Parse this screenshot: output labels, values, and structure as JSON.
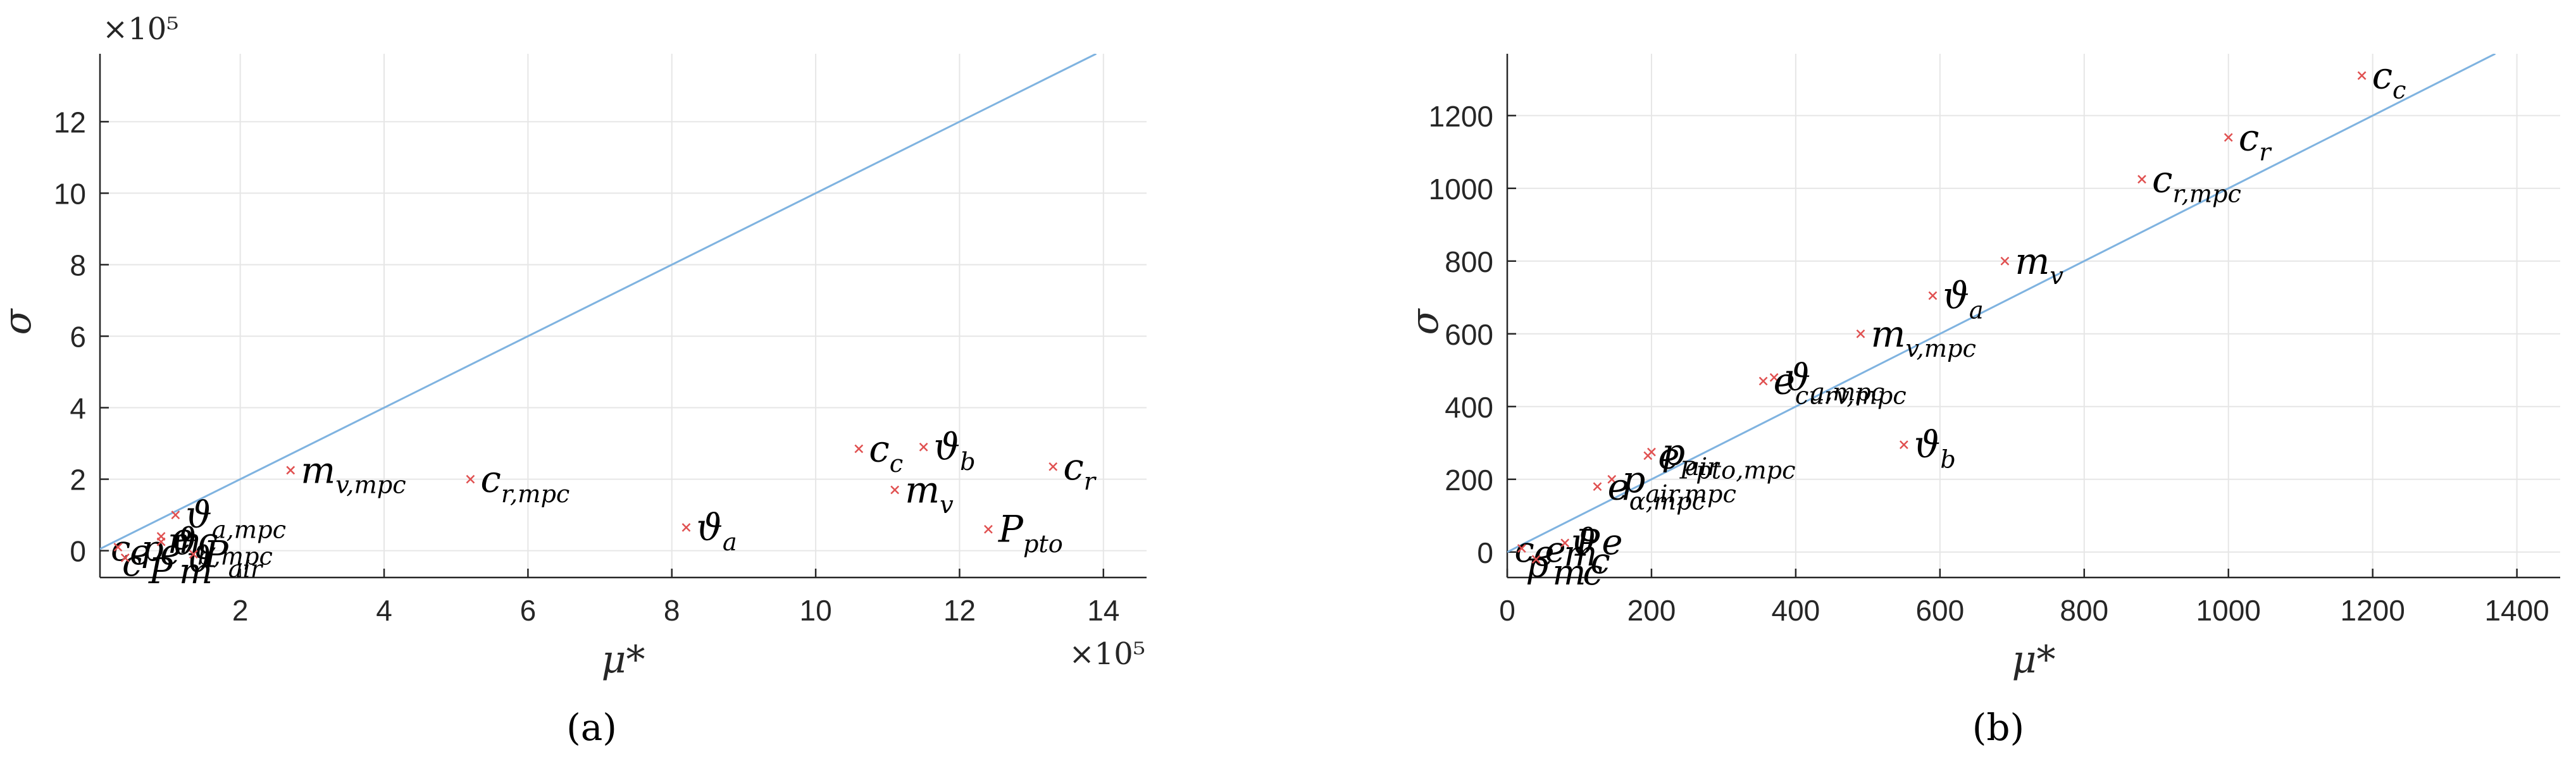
{
  "chart_data": [
    {
      "type": "scatter",
      "panel": "a",
      "caption": "(a)",
      "xlabel": "μ*",
      "ylabel": "σ",
      "xlim": [
        0.05,
        14.6
      ],
      "ylim": [
        -0.75,
        13.9
      ],
      "x_ticks": [
        2,
        4,
        6,
        8,
        10,
        12,
        14
      ],
      "y_ticks": [
        0,
        2,
        4,
        6,
        8,
        10,
        12
      ],
      "x_exponent": "×10⁵",
      "y_exponent": "×10⁵",
      "grid": true,
      "reference_line": {
        "from": [
          0,
          0
        ],
        "to": [
          13.9,
          13.9
        ],
        "color": "#7fb3e0"
      },
      "marker_color": "#e05050",
      "points": [
        {
          "label": "c_c",
          "x": 10.6,
          "y": 2.85
        },
        {
          "label": "ϑ_b",
          "x": 11.5,
          "y": 2.9
        },
        {
          "label": "m_v",
          "x": 11.1,
          "y": 1.7
        },
        {
          "label": "c_r",
          "x": 13.3,
          "y": 2.35
        },
        {
          "label": "P_pto",
          "x": 12.4,
          "y": 0.6
        },
        {
          "label": "ϑ_a",
          "x": 8.2,
          "y": 0.65
        },
        {
          "label": "c_r,mpc",
          "x": 5.2,
          "y": 2.0
        },
        {
          "label": "m_v,mpc",
          "x": 2.7,
          "y": 2.25
        },
        {
          "label": "ϑ_a,mpc",
          "x": 1.1,
          "y": 1.0
        },
        {
          "label": "e",
          "x": 0.9,
          "y": 0.4
        },
        {
          "label": "ϑ_b,mpc",
          "x": 0.9,
          "y": 0.25
        },
        {
          "label": "P_air",
          "x": 1.35,
          "y": -0.1
        },
        {
          "label": "",
          "x": 0.3,
          "y": 0.1
        },
        {
          "label": "",
          "x": 0.4,
          "y": -0.2
        }
      ],
      "cluster_labels": [
        "c",
        "e",
        "P",
        "m",
        "ϑ",
        "c",
        "p",
        "e",
        "m",
        "c"
      ]
    },
    {
      "type": "scatter",
      "panel": "b",
      "caption": "(b)",
      "xlabel": "μ*",
      "ylabel": "σ",
      "xlim": [
        0,
        1460
      ],
      "ylim": [
        -70,
        1370
      ],
      "x_ticks": [
        0,
        200,
        400,
        600,
        800,
        1000,
        1200,
        1400
      ],
      "y_ticks": [
        0,
        200,
        400,
        600,
        800,
        1000,
        1200
      ],
      "grid": true,
      "reference_line": {
        "from": [
          0,
          0
        ],
        "to": [
          1370,
          1370
        ],
        "color": "#7fb3e0"
      },
      "marker_color": "#e05050",
      "points": [
        {
          "label": "c_c",
          "x": 1185,
          "y": 1310
        },
        {
          "label": "c_r",
          "x": 1000,
          "y": 1140
        },
        {
          "label": "c_r,mpc",
          "x": 880,
          "y": 1025
        },
        {
          "label": "m_v",
          "x": 690,
          "y": 800
        },
        {
          "label": "ϑ_a",
          "x": 590,
          "y": 705
        },
        {
          "label": "m_v,mpc",
          "x": 490,
          "y": 600
        },
        {
          "label": "ϑ_a,mpc",
          "x": 370,
          "y": 480
        },
        {
          "label": "e_curv,mpc",
          "x": 355,
          "y": 470
        },
        {
          "label": "ϑ_b",
          "x": 550,
          "y": 295
        },
        {
          "label": "p_air",
          "x": 200,
          "y": 275
        },
        {
          "label": "e_Ppto,mpc",
          "x": 195,
          "y": 265
        },
        {
          "label": "p_air,mpc",
          "x": 145,
          "y": 200
        },
        {
          "label": "e_α,mpc",
          "x": 125,
          "y": 180
        },
        {
          "label": "P",
          "x": 80,
          "y": 25
        },
        {
          "label": "",
          "x": 20,
          "y": 10
        },
        {
          "label": "",
          "x": 40,
          "y": -20
        }
      ],
      "cluster_labels": [
        "c",
        "e",
        "m",
        "ϑ",
        "c",
        "p",
        "e",
        "m",
        "c",
        "e"
      ]
    }
  ]
}
